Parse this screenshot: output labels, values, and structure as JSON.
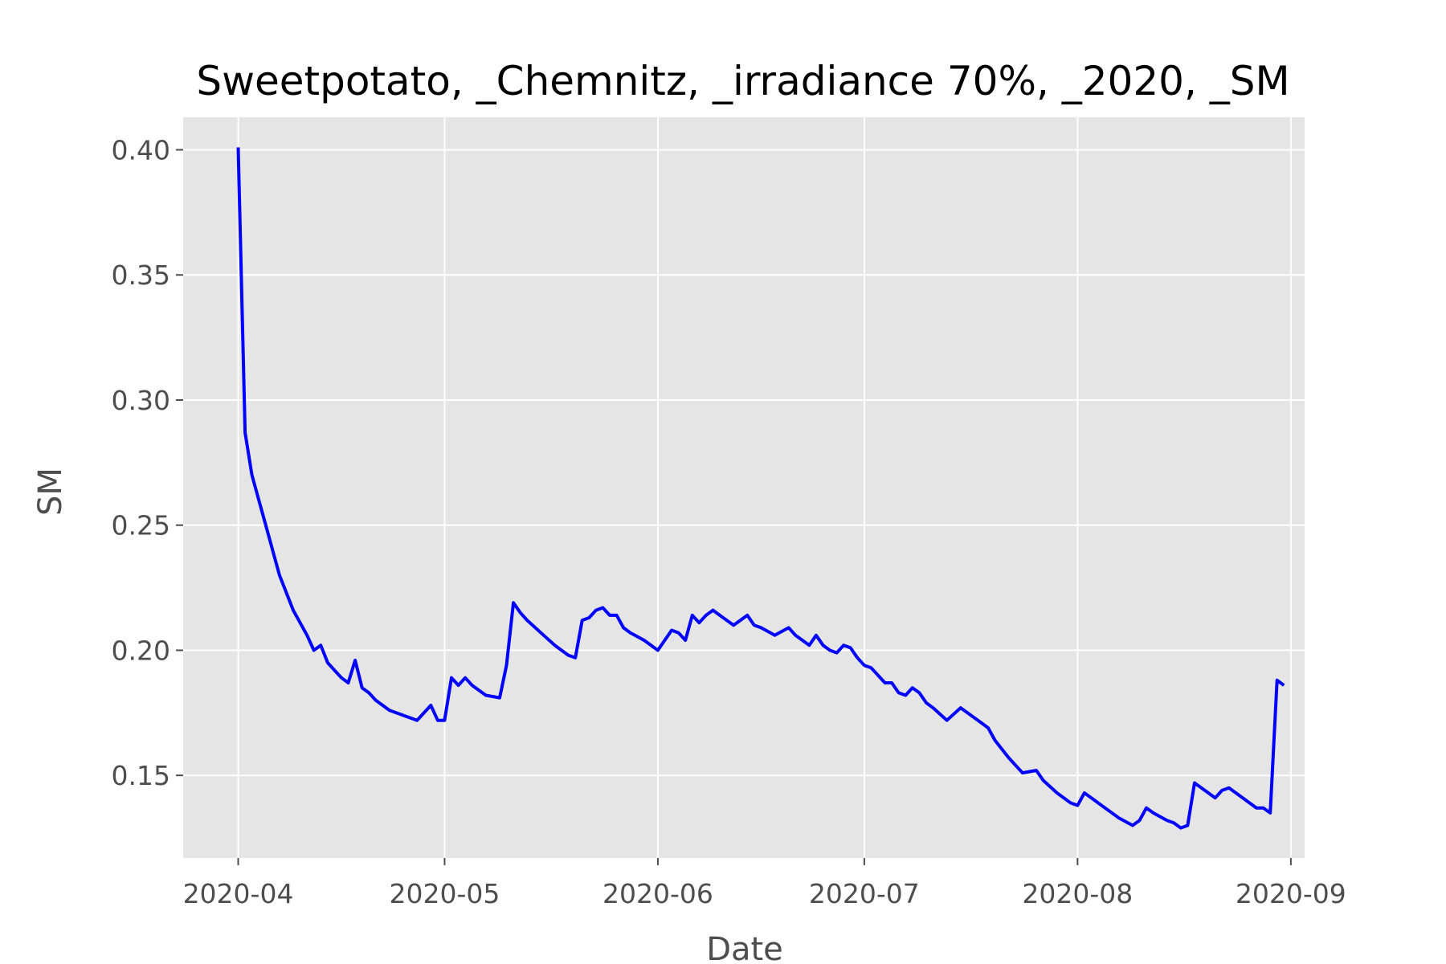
{
  "chart_data": {
    "type": "line",
    "title": "Sweetpotato, _Chemnitz, _irradiance 70%, _2020, _SM",
    "xlabel": "Date",
    "ylabel": "SM",
    "x_ticks": [
      "2020-04",
      "2020-05",
      "2020-06",
      "2020-07",
      "2020-08",
      "2020-09"
    ],
    "y_ticks": [
      "0.15",
      "0.20",
      "0.25",
      "0.30",
      "0.35",
      "0.40"
    ],
    "xlim": [
      "2020-03-24",
      "2020-09-03"
    ],
    "ylim": [
      0.117,
      0.413
    ],
    "grid": true,
    "legend": "none",
    "colors": {
      "line": "#0000ff",
      "panel": "#e5e5e5",
      "grid": "#ffffff",
      "tick": "#4d4d4d"
    },
    "series": [
      {
        "x": [
          "2020-04-01",
          "2020-04-02",
          "2020-04-03",
          "2020-04-05",
          "2020-04-07",
          "2020-04-09",
          "2020-04-11",
          "2020-04-12",
          "2020-04-13",
          "2020-04-14",
          "2020-04-15",
          "2020-04-16",
          "2020-04-17",
          "2020-04-18",
          "2020-04-19",
          "2020-04-20",
          "2020-04-21",
          "2020-04-23",
          "2020-04-25",
          "2020-04-27",
          "2020-04-29",
          "2020-04-30",
          "2020-05-01",
          "2020-05-02",
          "2020-05-03",
          "2020-05-04",
          "2020-05-05",
          "2020-05-07",
          "2020-05-09",
          "2020-05-10",
          "2020-05-11",
          "2020-05-12",
          "2020-05-13",
          "2020-05-15",
          "2020-05-17",
          "2020-05-19",
          "2020-05-20",
          "2020-05-21",
          "2020-05-22",
          "2020-05-23",
          "2020-05-24",
          "2020-05-25",
          "2020-05-26",
          "2020-05-27",
          "2020-05-28",
          "2020-05-30",
          "2020-06-01",
          "2020-06-03",
          "2020-06-04",
          "2020-06-05",
          "2020-06-06",
          "2020-06-07",
          "2020-06-08",
          "2020-06-09",
          "2020-06-10",
          "2020-06-11",
          "2020-06-12",
          "2020-06-14",
          "2020-06-15",
          "2020-06-16",
          "2020-06-18",
          "2020-06-20",
          "2020-06-21",
          "2020-06-23",
          "2020-06-24",
          "2020-06-25",
          "2020-06-26",
          "2020-06-27",
          "2020-06-28",
          "2020-06-29",
          "2020-06-30",
          "2020-07-01",
          "2020-07-02",
          "2020-07-03",
          "2020-07-04",
          "2020-07-05",
          "2020-07-06",
          "2020-07-07",
          "2020-07-08",
          "2020-07-09",
          "2020-07-10",
          "2020-07-11",
          "2020-07-13",
          "2020-07-15",
          "2020-07-16",
          "2020-07-18",
          "2020-07-19",
          "2020-07-20",
          "2020-07-22",
          "2020-07-24",
          "2020-07-26",
          "2020-07-27",
          "2020-07-29",
          "2020-07-31",
          "2020-08-01",
          "2020-08-02",
          "2020-08-03",
          "2020-08-05",
          "2020-08-07",
          "2020-08-09",
          "2020-08-10",
          "2020-08-11",
          "2020-08-12",
          "2020-08-14",
          "2020-08-15",
          "2020-08-16",
          "2020-08-17",
          "2020-08-18",
          "2020-08-19",
          "2020-08-21",
          "2020-08-22",
          "2020-08-23",
          "2020-08-24",
          "2020-08-26",
          "2020-08-27",
          "2020-08-28",
          "2020-08-29",
          "2020-08-30",
          "2020-08-31"
        ],
        "values": [
          0.401,
          0.287,
          0.27,
          0.25,
          0.23,
          0.216,
          0.206,
          0.2,
          0.202,
          0.195,
          0.192,
          0.189,
          0.187,
          0.196,
          0.185,
          0.183,
          0.18,
          0.176,
          0.174,
          0.172,
          0.178,
          0.172,
          0.172,
          0.189,
          0.186,
          0.189,
          0.186,
          0.182,
          0.181,
          0.194,
          0.219,
          0.215,
          0.212,
          0.207,
          0.202,
          0.198,
          0.197,
          0.212,
          0.213,
          0.216,
          0.217,
          0.214,
          0.214,
          0.209,
          0.207,
          0.204,
          0.2,
          0.208,
          0.207,
          0.204,
          0.214,
          0.211,
          0.214,
          0.216,
          0.214,
          0.212,
          0.21,
          0.214,
          0.21,
          0.209,
          0.206,
          0.209,
          0.206,
          0.202,
          0.206,
          0.202,
          0.2,
          0.199,
          0.202,
          0.201,
          0.197,
          0.194,
          0.193,
          0.19,
          0.187,
          0.187,
          0.183,
          0.182,
          0.185,
          0.183,
          0.179,
          0.177,
          0.172,
          0.177,
          0.175,
          0.171,
          0.169,
          0.164,
          0.157,
          0.151,
          0.152,
          0.148,
          0.143,
          0.139,
          0.138,
          0.143,
          0.141,
          0.137,
          0.133,
          0.13,
          0.132,
          0.137,
          0.135,
          0.132,
          0.131,
          0.129,
          0.13,
          0.147,
          0.145,
          0.141,
          0.144,
          0.145,
          0.143,
          0.139,
          0.137,
          0.137,
          0.135,
          0.188,
          0.186
        ]
      }
    ]
  }
}
